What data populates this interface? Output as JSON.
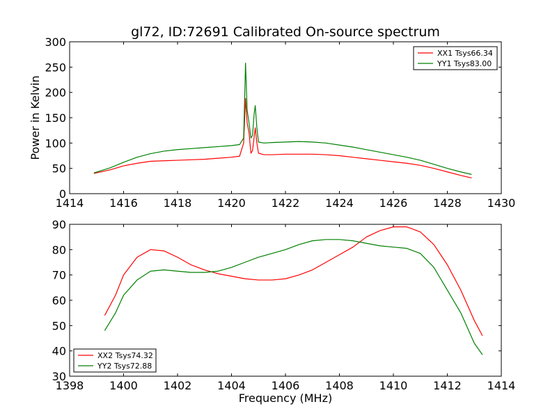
{
  "chart_data": [
    {
      "type": "line",
      "title": "gl72, ID:72691 Calibrated On-source spectrum",
      "xlabel": "",
      "ylabel": "Power in Kelvin",
      "xlim": [
        1414,
        1430
      ],
      "ylim": [
        0,
        300
      ],
      "xticks": [
        1414,
        1416,
        1418,
        1420,
        1422,
        1424,
        1426,
        1428,
        1430
      ],
      "yticks": [
        0,
        50,
        100,
        150,
        200,
        250,
        300
      ],
      "grid": false,
      "legend_position": "top-right",
      "series": [
        {
          "name": "XX1 Tsys66.34",
          "color": "#ff0000",
          "points": [
            [
              1414.9,
              40
            ],
            [
              1415.5,
              47
            ],
            [
              1416.0,
              55
            ],
            [
              1416.5,
              60
            ],
            [
              1417.0,
              64
            ],
            [
              1417.5,
              65
            ],
            [
              1418.0,
              66
            ],
            [
              1418.5,
              67
            ],
            [
              1419.0,
              68
            ],
            [
              1419.5,
              70
            ],
            [
              1420.0,
              72
            ],
            [
              1420.3,
              74
            ],
            [
              1420.45,
              100
            ],
            [
              1420.52,
              188
            ],
            [
              1420.58,
              140
            ],
            [
              1420.65,
              120
            ],
            [
              1420.72,
              80
            ],
            [
              1420.78,
              85
            ],
            [
              1420.84,
              112
            ],
            [
              1420.88,
              130
            ],
            [
              1420.94,
              100
            ],
            [
              1421.0,
              80
            ],
            [
              1421.2,
              77
            ],
            [
              1421.5,
              77
            ],
            [
              1422.0,
              78
            ],
            [
              1422.5,
              78
            ],
            [
              1423.0,
              78
            ],
            [
              1423.5,
              77
            ],
            [
              1424.0,
              75
            ],
            [
              1424.5,
              72
            ],
            [
              1425.0,
              69
            ],
            [
              1425.5,
              66
            ],
            [
              1426.0,
              63
            ],
            [
              1426.5,
              60
            ],
            [
              1427.0,
              56
            ],
            [
              1427.5,
              50
            ],
            [
              1428.0,
              43
            ],
            [
              1428.5,
              36
            ],
            [
              1428.9,
              31
            ]
          ]
        },
        {
          "name": "YY1 Tsys83.00",
          "color": "#008000",
          "points": [
            [
              1414.9,
              41
            ],
            [
              1415.5,
              51
            ],
            [
              1416.0,
              62
            ],
            [
              1416.5,
              72
            ],
            [
              1417.0,
              79
            ],
            [
              1417.5,
              84
            ],
            [
              1418.0,
              87
            ],
            [
              1418.5,
              89
            ],
            [
              1419.0,
              91
            ],
            [
              1419.5,
              93
            ],
            [
              1420.0,
              95
            ],
            [
              1420.3,
              97
            ],
            [
              1420.45,
              110
            ],
            [
              1420.52,
              258
            ],
            [
              1420.58,
              165
            ],
            [
              1420.65,
              140
            ],
            [
              1420.72,
              110
            ],
            [
              1420.78,
              115
            ],
            [
              1420.84,
              158
            ],
            [
              1420.88,
              174
            ],
            [
              1420.94,
              130
            ],
            [
              1421.0,
              102
            ],
            [
              1421.2,
              100
            ],
            [
              1421.5,
              101
            ],
            [
              1422.0,
              102
            ],
            [
              1422.5,
              103
            ],
            [
              1423.0,
              102
            ],
            [
              1423.5,
              100
            ],
            [
              1424.0,
              96
            ],
            [
              1424.5,
              92
            ],
            [
              1425.0,
              87
            ],
            [
              1425.5,
              82
            ],
            [
              1426.0,
              77
            ],
            [
              1426.5,
              72
            ],
            [
              1427.0,
              66
            ],
            [
              1427.5,
              58
            ],
            [
              1428.0,
              50
            ],
            [
              1428.5,
              43
            ],
            [
              1428.9,
              38
            ]
          ]
        }
      ]
    },
    {
      "type": "line",
      "title": "",
      "xlabel": "Frequency (MHz)",
      "ylabel": "",
      "xlim": [
        1398,
        1414
      ],
      "ylim": [
        30,
        90
      ],
      "xticks": [
        1398,
        1400,
        1402,
        1404,
        1406,
        1408,
        1410,
        1412,
        1414
      ],
      "yticks": [
        30,
        40,
        50,
        60,
        70,
        80,
        90
      ],
      "grid": false,
      "legend_position": "bottom-left",
      "series": [
        {
          "name": "XX2 Tsys74.32",
          "color": "#ff0000",
          "points": [
            [
              1399.3,
              54
            ],
            [
              1399.7,
              62
            ],
            [
              1400.0,
              70
            ],
            [
              1400.5,
              77
            ],
            [
              1401.0,
              80
            ],
            [
              1401.5,
              79.5
            ],
            [
              1402.0,
              77
            ],
            [
              1402.5,
              74
            ],
            [
              1403.0,
              72
            ],
            [
              1403.5,
              70.5
            ],
            [
              1404.0,
              69.5
            ],
            [
              1404.5,
              68.5
            ],
            [
              1405.0,
              68
            ],
            [
              1405.5,
              68
            ],
            [
              1406.0,
              68.5
            ],
            [
              1406.5,
              70
            ],
            [
              1407.0,
              72
            ],
            [
              1407.5,
              75
            ],
            [
              1408.0,
              78
            ],
            [
              1408.5,
              81
            ],
            [
              1409.0,
              85
            ],
            [
              1409.5,
              87.5
            ],
            [
              1410.0,
              89
            ],
            [
              1410.5,
              89
            ],
            [
              1411.0,
              87
            ],
            [
              1411.5,
              82
            ],
            [
              1412.0,
              74
            ],
            [
              1412.5,
              64
            ],
            [
              1413.0,
              52
            ],
            [
              1413.3,
              46
            ]
          ]
        },
        {
          "name": "YY2 Tsys72.88",
          "color": "#008000",
          "points": [
            [
              1399.3,
              48
            ],
            [
              1399.7,
              55
            ],
            [
              1400.0,
              62
            ],
            [
              1400.5,
              68
            ],
            [
              1401.0,
              71.5
            ],
            [
              1401.5,
              72
            ],
            [
              1402.0,
              71.5
            ],
            [
              1402.5,
              71
            ],
            [
              1403.0,
              71
            ],
            [
              1403.5,
              71.5
            ],
            [
              1404.0,
              73
            ],
            [
              1404.5,
              75
            ],
            [
              1405.0,
              77
            ],
            [
              1405.5,
              78.5
            ],
            [
              1406.0,
              80
            ],
            [
              1406.5,
              82
            ],
            [
              1407.0,
              83.5
            ],
            [
              1407.5,
              84
            ],
            [
              1408.0,
              84
            ],
            [
              1408.5,
              83.5
            ],
            [
              1409.0,
              82.5
            ],
            [
              1409.5,
              81.5
            ],
            [
              1410.0,
              81
            ],
            [
              1410.5,
              80.5
            ],
            [
              1411.0,
              78.5
            ],
            [
              1411.5,
              73
            ],
            [
              1412.0,
              64
            ],
            [
              1412.5,
              55
            ],
            [
              1413.0,
              43
            ],
            [
              1413.3,
              38.5
            ]
          ]
        }
      ]
    }
  ]
}
